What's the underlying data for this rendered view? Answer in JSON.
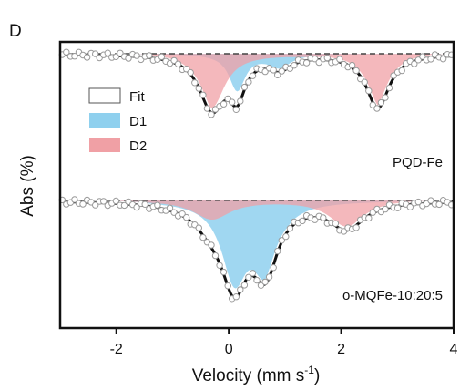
{
  "panel_label": "D",
  "colors": {
    "fit": "#111111",
    "d1": "#8fd0ee",
    "d2": "#f0a0a5",
    "points_fill": "#ffffff",
    "points_stroke": "#9a9a9a"
  },
  "chart_data": {
    "type": "line",
    "xlabel": "Velocity (mm s",
    "xlabel_sup": "-1",
    "xlabel_close": ")",
    "ylabel": "Abs (%)",
    "xlim": [
      -3,
      4
    ],
    "xticks": [
      -2,
      0,
      2,
      4
    ],
    "grid": false,
    "legend": {
      "placement": "upper-left of top panel",
      "entries": [
        {
          "label": "Fit",
          "swatch": "fit"
        },
        {
          "label": "D1",
          "swatch": "d1"
        },
        {
          "label": "D2",
          "swatch": "d2"
        }
      ]
    },
    "panels": [
      {
        "label": "PQD-Fe",
        "baseline": 0,
        "ylim": [
          -1.08,
          0.06
        ],
        "d1": [
          {
            "center": 0.15,
            "width": 0.35,
            "depth": 0.34
          },
          {
            "center": 0.9,
            "width": 0.5,
            "depth": 0.12
          }
        ],
        "d2": [
          {
            "center": -0.3,
            "width": 0.55,
            "depth": 0.5
          },
          {
            "center": 2.65,
            "width": 0.5,
            "depth": 0.5
          }
        ],
        "fit_minima": [
          {
            "x": -0.2,
            "y": -1.0
          },
          {
            "x": 2.65,
            "y": -0.78
          }
        ]
      },
      {
        "label": "o-MQFe-10:20:5",
        "baseline": 0,
        "ylim": [
          -1.08,
          0.06
        ],
        "d1": [
          {
            "center": 0.1,
            "width": 0.55,
            "depth": 0.72
          },
          {
            "center": 0.65,
            "width": 0.55,
            "depth": 0.62
          }
        ],
        "d2": [
          {
            "center": -0.3,
            "width": 0.8,
            "depth": 0.18
          },
          {
            "center": 2.1,
            "width": 0.75,
            "depth": 0.25
          }
        ],
        "fit_minima": [
          {
            "x": 0.1,
            "y": -0.98
          },
          {
            "x": 0.6,
            "y": -0.9
          },
          {
            "x": 2.2,
            "y": -0.27
          }
        ]
      }
    ]
  }
}
